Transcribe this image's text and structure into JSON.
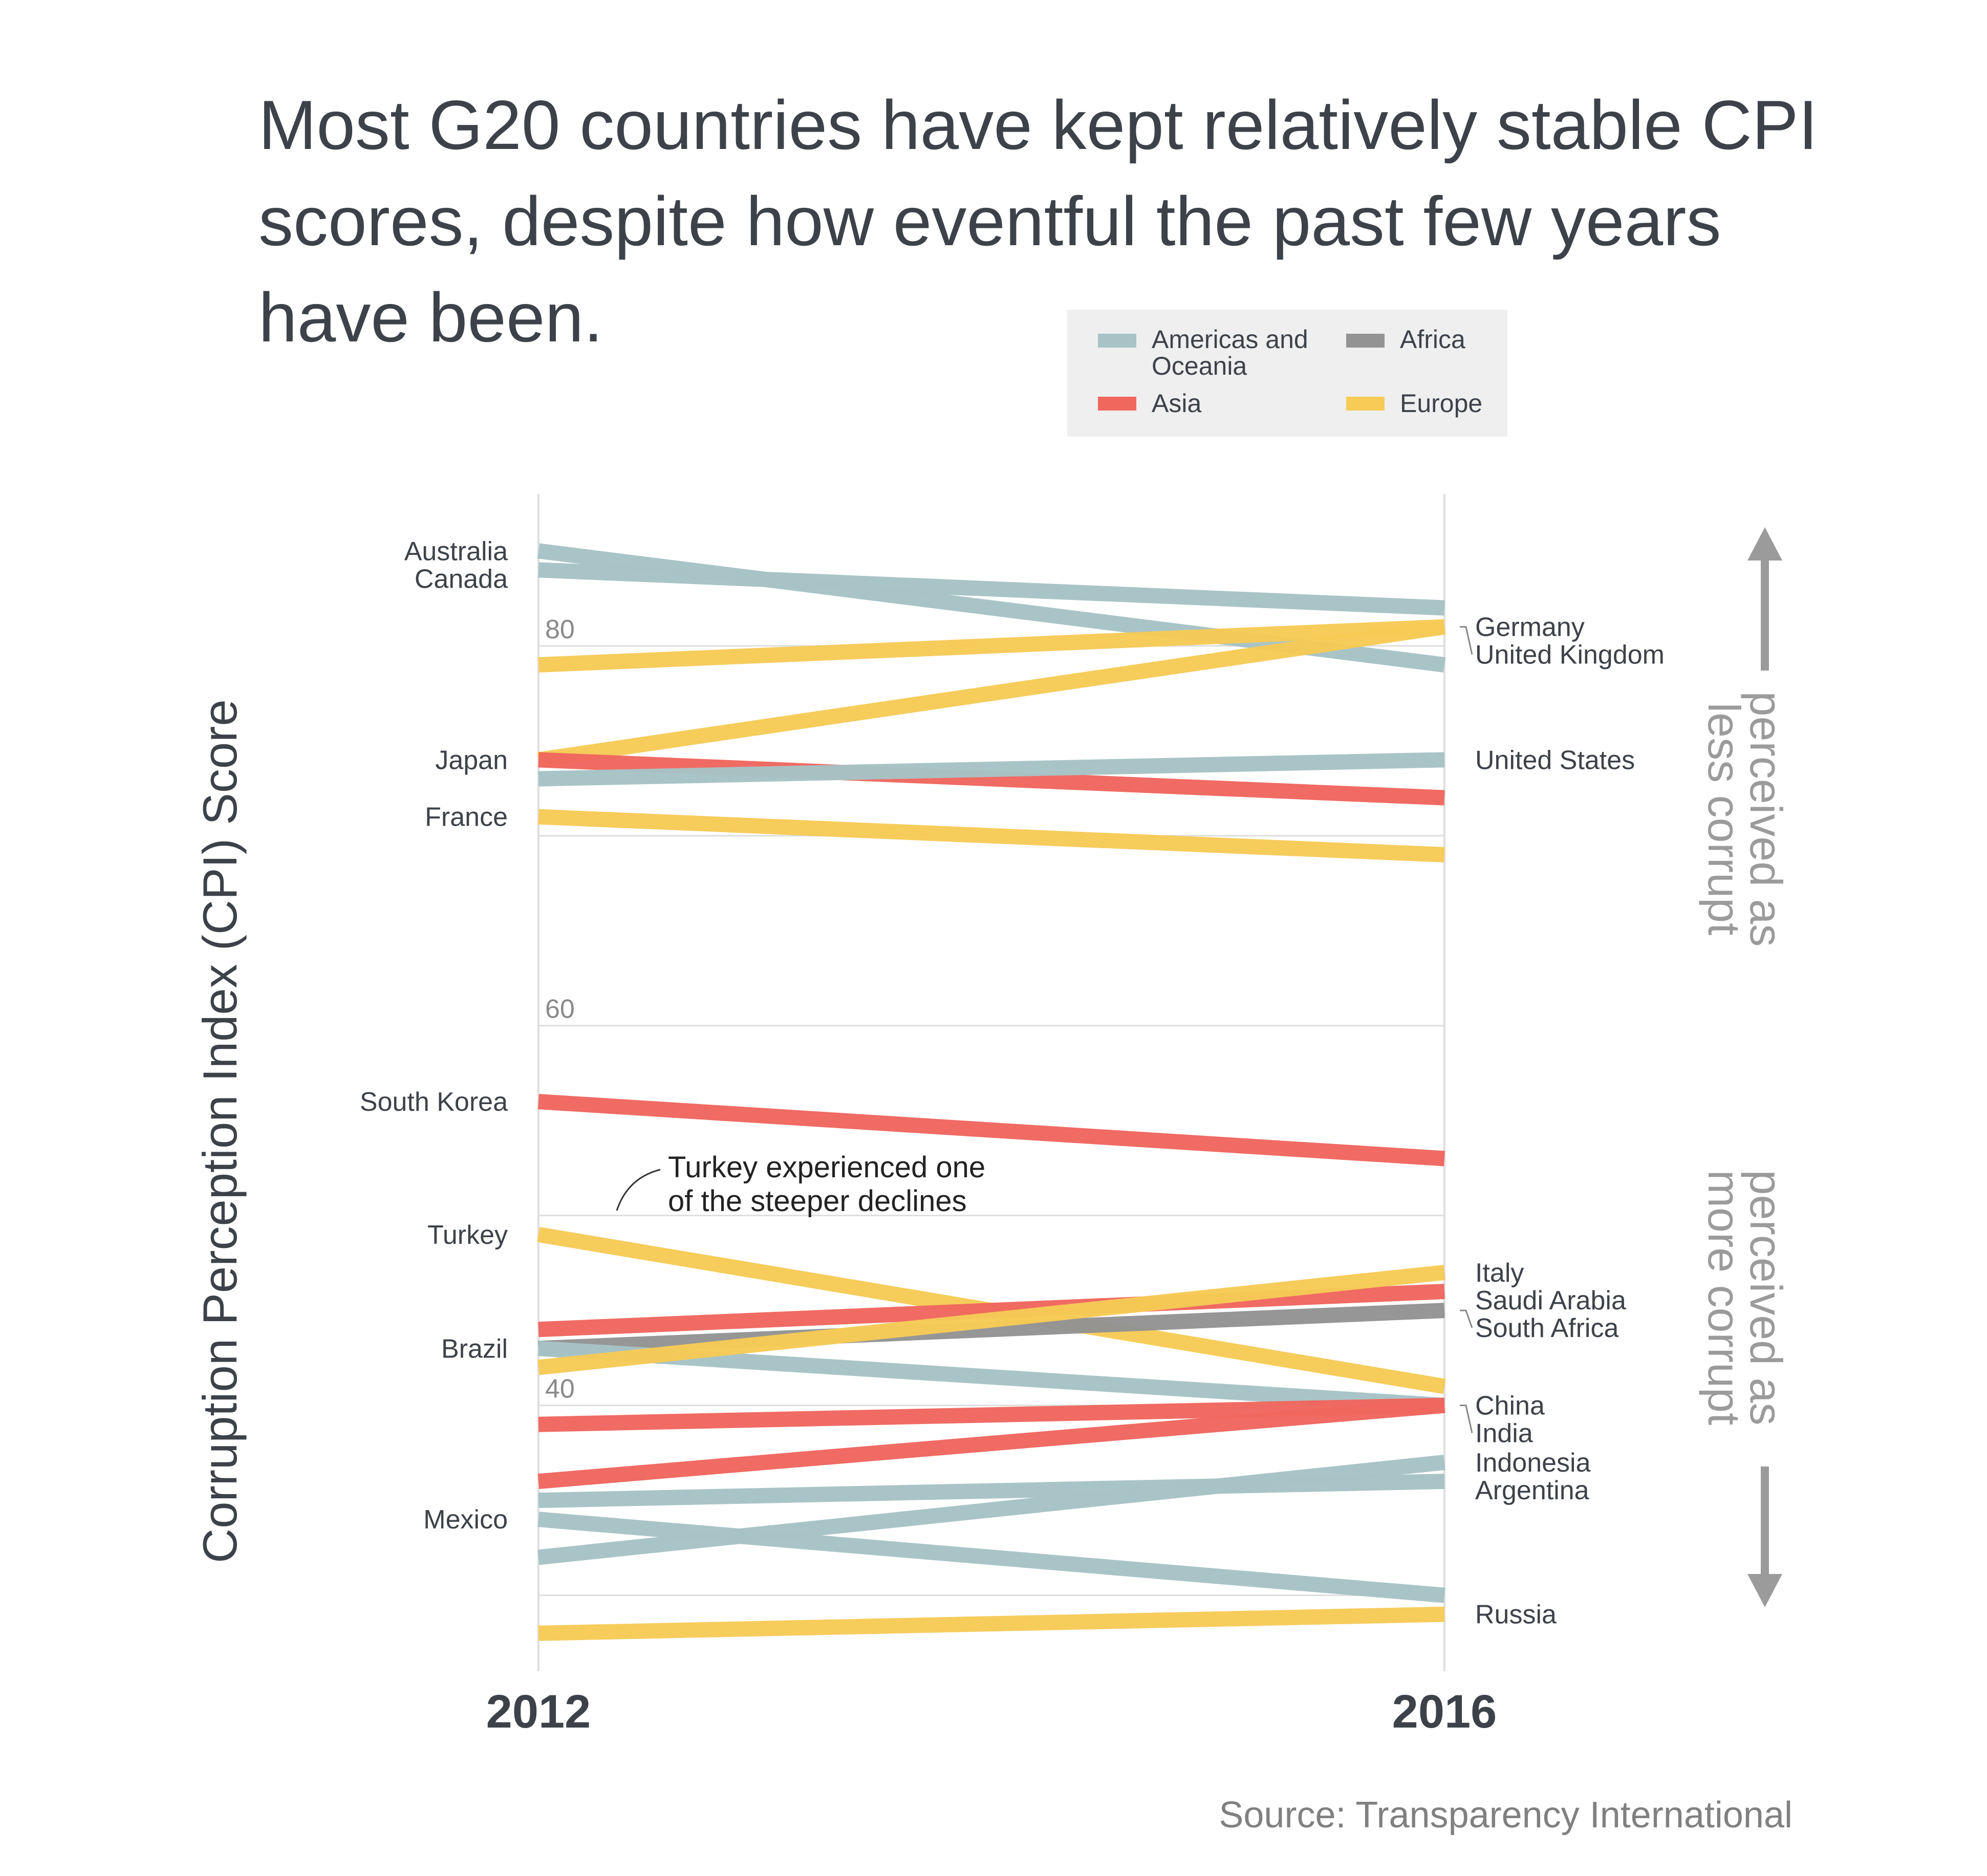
{
  "title": "Most G20 countries have kept relatively stable CPI scores, despite how eventful the past few years have been.",
  "source": "Source: Transparency International",
  "legend": [
    {
      "label": "Americas and Oceania",
      "color": "#a7c3c6"
    },
    {
      "label": "Africa",
      "color": "#939393"
    },
    {
      "label": "Asia",
      "color": "#f0675e"
    },
    {
      "label": "Europe",
      "color": "#f6cb56"
    }
  ],
  "colors": {
    "Americas and Oceania": "#a7c3c6",
    "Asia": "#f0675e",
    "Africa": "#939393",
    "Europe": "#f6cb56",
    "text": "#3d424a",
    "muted": "#9b9b9b",
    "grid": "#dedede"
  },
  "annotations": {
    "less_corrupt": [
      "perceived as",
      "less corrupt"
    ],
    "more_corrupt": [
      "perceived as",
      "more corrupt"
    ],
    "turkey_note": [
      "Turkey experienced one",
      "of the steeper declines"
    ]
  },
  "chart_data": {
    "type": "line",
    "chart_subtype": "slope",
    "x": [
      "2012",
      "2016"
    ],
    "ylabel": "Corruption Perception Index (CPI) Score",
    "xlabel": "",
    "y_ticks": [
      40,
      60,
      80
    ],
    "ylim": [
      26,
      88
    ],
    "grid": true,
    "legend_position": "top-right",
    "series": [
      {
        "name": "Australia",
        "region": "Americas and Oceania",
        "values": [
          85,
          79
        ]
      },
      {
        "name": "Canada",
        "region": "Americas and Oceania",
        "values": [
          84,
          82
        ]
      },
      {
        "name": "Germany",
        "region": "Europe",
        "values": [
          79,
          81
        ]
      },
      {
        "name": "United Kingdom",
        "region": "Europe",
        "values": [
          74,
          81
        ]
      },
      {
        "name": "Japan",
        "region": "Asia",
        "values": [
          74,
          72
        ]
      },
      {
        "name": "United States",
        "region": "Americas and Oceania",
        "values": [
          73,
          74
        ]
      },
      {
        "name": "France",
        "region": "Europe",
        "values": [
          71,
          69
        ]
      },
      {
        "name": "South Korea",
        "region": "Asia",
        "values": [
          56,
          53
        ]
      },
      {
        "name": "Turkey",
        "region": "Europe",
        "values": [
          49,
          41
        ]
      },
      {
        "name": "Saudi Arabia",
        "region": "Asia",
        "values": [
          44,
          46
        ]
      },
      {
        "name": "South Africa",
        "region": "Africa",
        "values": [
          43,
          45
        ]
      },
      {
        "name": "Brazil",
        "region": "Americas and Oceania",
        "values": [
          43,
          40
        ]
      },
      {
        "name": "Italy",
        "region": "Europe",
        "values": [
          42,
          47
        ]
      },
      {
        "name": "China",
        "region": "Asia",
        "values": [
          39,
          40
        ]
      },
      {
        "name": "India",
        "region": "Asia",
        "values": [
          36,
          40
        ]
      },
      {
        "name": "Argentina",
        "region": "Americas and Oceania",
        "values": [
          35,
          36
        ]
      },
      {
        "name": "Mexico",
        "region": "Americas and Oceania",
        "values": [
          34,
          30
        ]
      },
      {
        "name": "Indonesia",
        "region": "Americas and Oceania",
        "values": [
          32,
          37
        ]
      },
      {
        "name": "Russia",
        "region": "Europe",
        "values": [
          28,
          29
        ]
      }
    ],
    "left_labels": [
      "Australia",
      "Canada",
      "Japan",
      "France",
      "South Korea",
      "Turkey",
      "Brazil",
      "Mexico"
    ],
    "right_labels": [
      "Germany",
      "United Kingdom",
      "United States",
      "Italy",
      "Saudi Arabia",
      "South Africa",
      "China",
      "India",
      "Indonesia",
      "Argentina",
      "Russia"
    ]
  }
}
